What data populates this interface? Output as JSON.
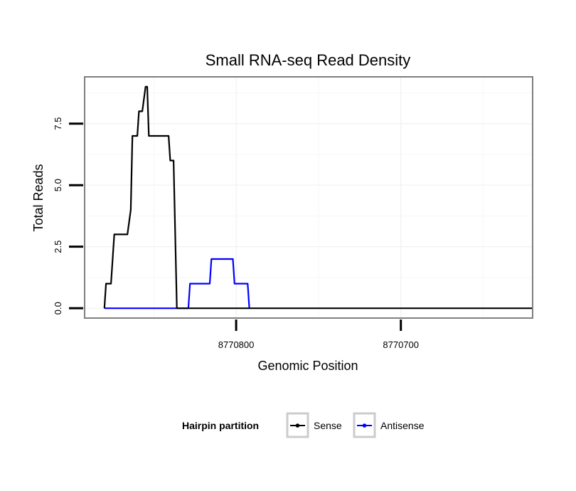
{
  "chart_data": {
    "type": "line",
    "title": "Small RNA-seq Read Density",
    "xlabel": "Genomic Position",
    "ylabel": "Total Reads",
    "x_reversed": true,
    "xlim": [
      8770892,
      8770620
    ],
    "ylim": [
      -0.4,
      9.4
    ],
    "x_ticks": [
      8770800,
      8770700
    ],
    "x_tick_labels": [
      "8770800",
      "8770700"
    ],
    "y_ticks": [
      0.0,
      2.5,
      5.0,
      7.5
    ],
    "y_tick_labels": [
      "0.0",
      "2.5",
      "5.0",
      "7.5"
    ],
    "grid": true,
    "legend": {
      "title": "Hairpin partition",
      "placement": "bottom",
      "entries": [
        "Sense",
        "Antisense"
      ]
    },
    "series": [
      {
        "name": "Sense",
        "color": "#000000",
        "points": [
          [
            8770880,
            0
          ],
          [
            8770879,
            1
          ],
          [
            8770876,
            1
          ],
          [
            8770874,
            3
          ],
          [
            8770873,
            3
          ],
          [
            8770866,
            3
          ],
          [
            8770864,
            4
          ],
          [
            8770863,
            7
          ],
          [
            8770860,
            7
          ],
          [
            8770859,
            8
          ],
          [
            8770857,
            8
          ],
          [
            8770855,
            9
          ],
          [
            8770854,
            9
          ],
          [
            8770853,
            7
          ],
          [
            8770841,
            7
          ],
          [
            8770840,
            6
          ],
          [
            8770838,
            6
          ],
          [
            8770837,
            3
          ],
          [
            8770836,
            0
          ],
          [
            8770620,
            0
          ]
        ]
      },
      {
        "name": "Antisense",
        "color": "#0000ff",
        "points": [
          [
            8770880,
            0
          ],
          [
            8770829,
            0
          ],
          [
            8770828,
            1
          ],
          [
            8770816,
            1
          ],
          [
            8770815,
            2
          ],
          [
            8770802,
            2
          ],
          [
            8770801,
            1
          ],
          [
            8770793,
            1
          ],
          [
            8770792,
            0
          ]
        ]
      }
    ]
  }
}
